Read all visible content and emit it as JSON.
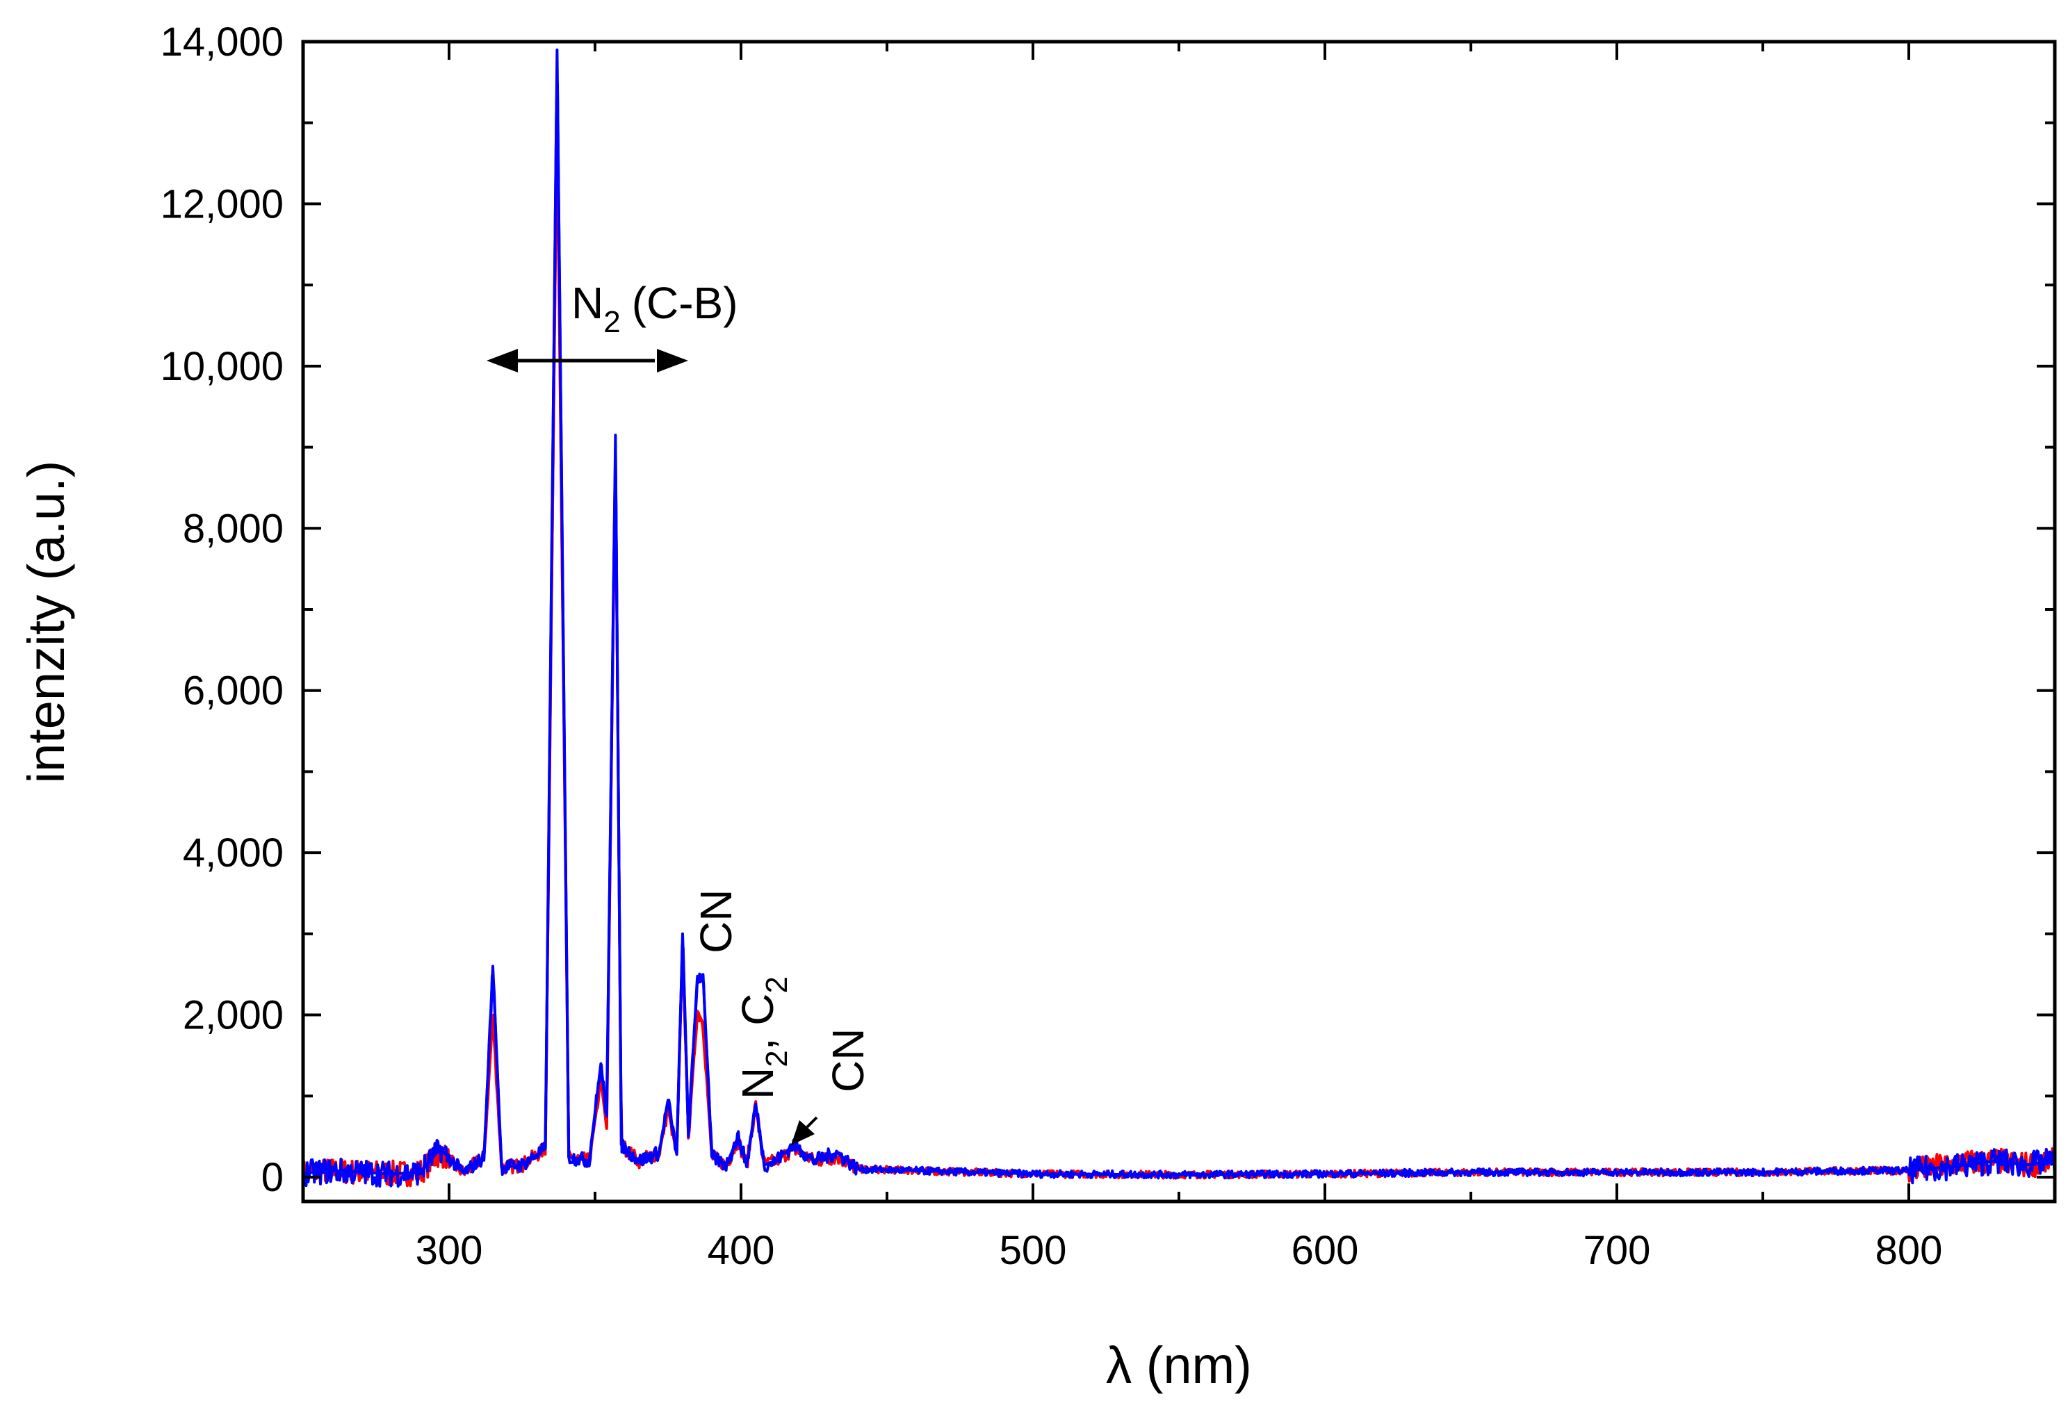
{
  "chart_data": {
    "type": "line",
    "title": "",
    "xlabel": "λ (nm)",
    "ylabel": "intenzity (a.u.)",
    "xlim": [
      250,
      850
    ],
    "ylim": [
      -300,
      14000
    ],
    "x_ticks": [
      300,
      400,
      500,
      600,
      700,
      800
    ],
    "x_tick_labels": [
      "300",
      "400",
      "500",
      "600",
      "700",
      "800"
    ],
    "y_ticks": [
      0,
      2000,
      4000,
      6000,
      8000,
      10000,
      12000,
      14000
    ],
    "y_tick_labels": [
      "0",
      "2,000",
      "4,000",
      "6,000",
      "8,000",
      "10,000",
      "12,000",
      "14,000"
    ],
    "grid": false,
    "legend": "none",
    "series": [
      {
        "color": "#ff0000",
        "x": [
          250,
          260,
          270,
          280,
          290,
          297,
          305,
          312,
          315,
          318,
          325,
          333,
          337,
          341,
          348,
          352,
          354,
          357,
          359,
          365,
          372,
          375,
          378,
          380,
          382,
          385,
          387,
          390,
          395,
          399,
          402,
          405,
          408,
          412,
          418,
          425,
          433,
          440,
          460,
          500,
          550,
          600,
          650,
          700,
          750,
          780,
          800,
          820,
          830,
          840,
          850
        ],
        "y": [
          50,
          80,
          60,
          40,
          60,
          300,
          50,
          250,
          2000,
          120,
          150,
          350,
          13200,
          250,
          200,
          1200,
          600,
          9000,
          400,
          200,
          300,
          850,
          280,
          2900,
          500,
          2050,
          1900,
          250,
          150,
          450,
          150,
          900,
          150,
          200,
          350,
          200,
          250,
          100,
          80,
          40,
          30,
          40,
          60,
          60,
          60,
          80,
          80,
          180,
          200,
          150,
          200
        ]
      },
      {
        "color": "#0000ff",
        "x": [
          250,
          260,
          270,
          280,
          290,
          297,
          305,
          312,
          315,
          318,
          325,
          333,
          337,
          341,
          348,
          352,
          354,
          357,
          359,
          365,
          372,
          375,
          378,
          380,
          382,
          385,
          387,
          390,
          395,
          399,
          402,
          405,
          408,
          412,
          418,
          425,
          433,
          440,
          460,
          500,
          550,
          600,
          650,
          700,
          750,
          780,
          800,
          820,
          830,
          840,
          850
        ],
        "y": [
          50,
          80,
          60,
          40,
          60,
          350,
          50,
          250,
          2600,
          120,
          150,
          350,
          13900,
          250,
          200,
          1400,
          750,
          9150,
          400,
          200,
          300,
          950,
          280,
          3000,
          500,
          2450,
          2500,
          250,
          150,
          500,
          150,
          900,
          150,
          200,
          400,
          200,
          300,
          100,
          80,
          40,
          30,
          40,
          60,
          60,
          60,
          80,
          80,
          150,
          200,
          150,
          200
        ]
      }
    ],
    "annotations": {
      "n2_main": "N",
      "n2_main_sub": "2",
      "n2_main_rest": "(C-B)",
      "cn_1": "CN",
      "n2c2_n": "N",
      "n2c2_sub1": "2",
      "n2c2_comma": ", C",
      "n2c2_sub2": "2",
      "cn_2": "CN"
    }
  }
}
